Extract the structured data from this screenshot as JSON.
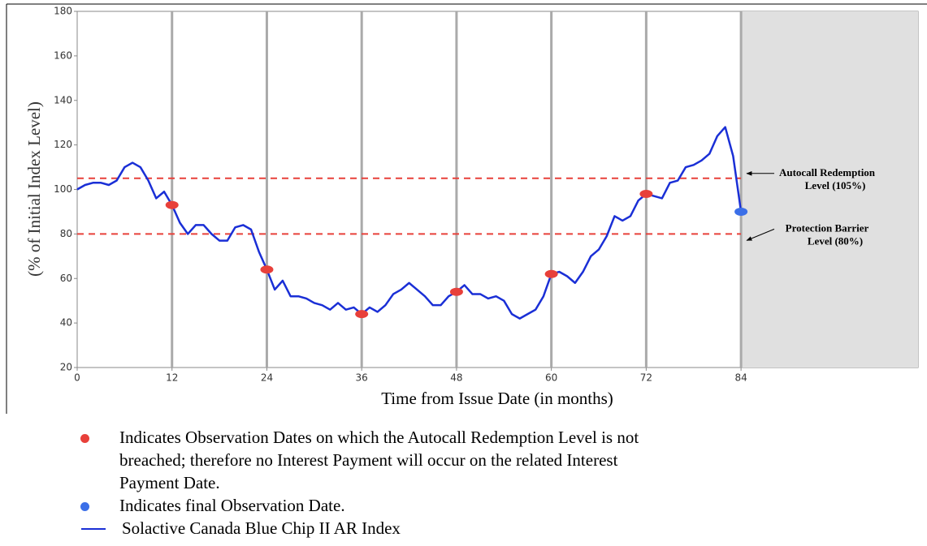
{
  "chart_data": {
    "type": "line",
    "xlabel": "Time from Issue Date (in months)",
    "ylabel": "(% of Initial Index Level)",
    "xlim": [
      0,
      106.4
    ],
    "ylim": [
      20,
      180
    ],
    "xticks": [
      0,
      12,
      24,
      36,
      48,
      60,
      72,
      84
    ],
    "yticks": [
      20,
      40,
      60,
      80,
      100,
      120,
      140,
      160,
      180
    ],
    "vertical_grid": true,
    "shaded_from": 84,
    "reference_lines": [
      {
        "value": 105,
        "color": "#e8403a",
        "label": [
          "Autocall Redemption",
          "Level (105%)"
        ]
      },
      {
        "value": 80,
        "color": "#e8403a",
        "label": [
          "Protection Barrier",
          "Level (80%)"
        ]
      }
    ],
    "series": [
      {
        "name": "Indicates Observation Dates on which the Autocall Redemption Level is not breached; therefore no Interest Payment will occur on the related Interest Payment Date.",
        "kind": "scatter",
        "color": "#e8403a",
        "x": [
          12,
          24,
          36,
          48,
          60,
          72
        ],
        "values": [
          93,
          64,
          44,
          54,
          62,
          98
        ]
      },
      {
        "name": "Indicates final Observation Date.",
        "kind": "scatter",
        "color": "#3b6fe8",
        "x": [
          84
        ],
        "values": [
          90
        ]
      },
      {
        "name": "Solactive Canada Blue Chip II AR Index",
        "kind": "line",
        "color": "#1a2fd6",
        "x": [
          0,
          1,
          2,
          3,
          4,
          5,
          6,
          7,
          8,
          9,
          10,
          11,
          12,
          13,
          14,
          15,
          16,
          17,
          18,
          19,
          20,
          21,
          22,
          23,
          24,
          25,
          26,
          27,
          28,
          29,
          30,
          31,
          32,
          33,
          34,
          35,
          36,
          37,
          38,
          39,
          40,
          41,
          42,
          43,
          44,
          45,
          46,
          47,
          48,
          49,
          50,
          51,
          52,
          53,
          54,
          55,
          56,
          57,
          58,
          59,
          60,
          61,
          62,
          63,
          64,
          65,
          66,
          67,
          68,
          69,
          70,
          71,
          72,
          73,
          74,
          75,
          76,
          77,
          78,
          79,
          80,
          81,
          82,
          83,
          84
        ],
        "values": [
          100,
          102,
          103,
          103,
          102,
          104,
          110,
          112,
          110,
          104,
          96,
          99,
          93,
          85,
          80,
          84,
          84,
          80,
          77,
          77,
          83,
          84,
          82,
          72,
          64,
          55,
          59,
          52,
          52,
          51,
          49,
          48,
          46,
          49,
          46,
          47,
          44,
          47,
          45,
          48,
          53,
          55,
          58,
          55,
          52,
          48,
          48,
          52,
          54,
          57,
          53,
          53,
          51,
          52,
          50,
          44,
          42,
          44,
          46,
          52,
          62,
          63,
          61,
          58,
          63,
          70,
          73,
          79,
          88,
          86,
          88,
          95,
          98,
          97,
          96,
          103,
          104,
          110,
          111,
          113,
          116,
          124,
          128,
          115,
          90
        ]
      }
    ]
  }
}
